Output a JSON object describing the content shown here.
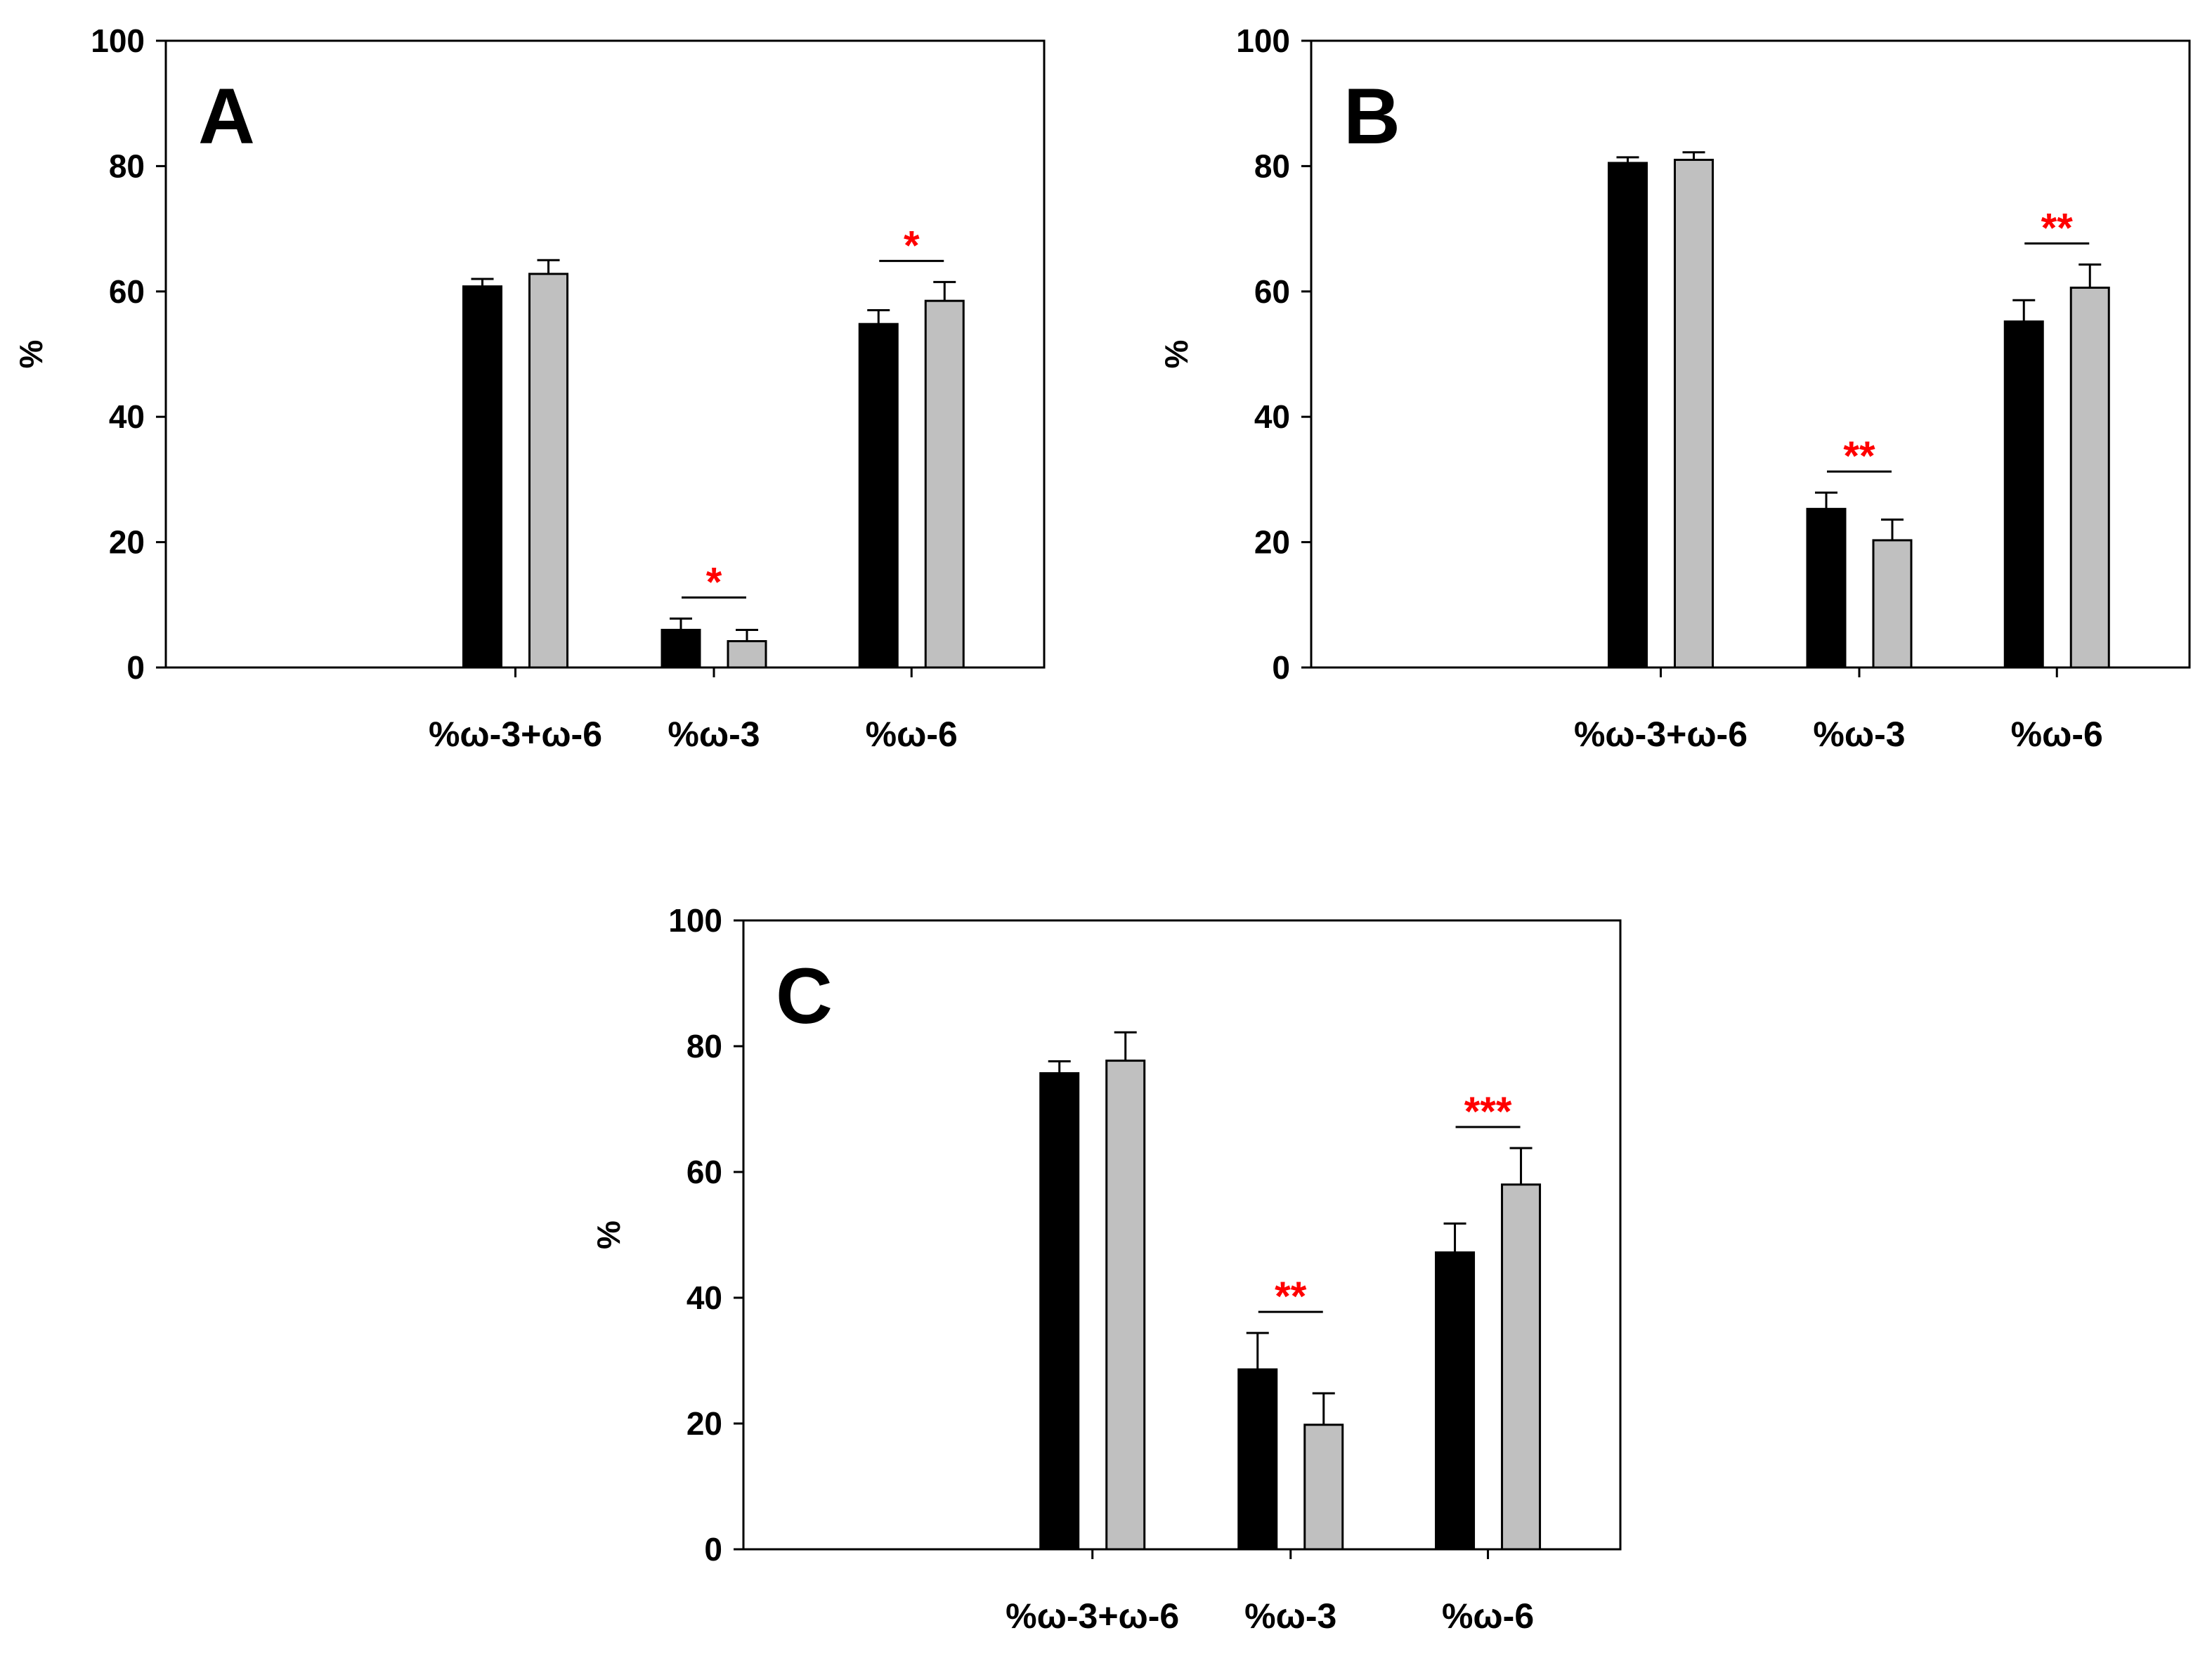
{
  "colors": {
    "series1": "#000000",
    "series2": "#c0c0c0",
    "axis": "#000000",
    "significance": "#ff0000"
  },
  "chart_data": [
    {
      "panel": "A",
      "type": "bar",
      "ylabel": "%",
      "xlabel": "",
      "ylim": [
        0,
        100
      ],
      "yticks": [
        0,
        20,
        40,
        60,
        80,
        100
      ],
      "categories": [
        "%ω-3+ω-6",
        "%ω-3",
        "%ω-6"
      ],
      "series": [
        {
          "name": "series 1 (black)",
          "values": [
            60.8,
            6.0,
            54.8
          ],
          "errors": [
            1.2,
            1.8,
            2.2
          ]
        },
        {
          "name": "series 2 (gray)",
          "values": [
            62.8,
            4.2,
            58.5
          ],
          "errors": [
            2.2,
            1.8,
            3.0
          ]
        }
      ],
      "significance": [
        {
          "category_index": 1,
          "label": "*"
        },
        {
          "category_index": 2,
          "label": "*"
        }
      ]
    },
    {
      "panel": "B",
      "type": "bar",
      "ylabel": "%",
      "xlabel": "",
      "ylim": [
        0,
        100
      ],
      "yticks": [
        0,
        20,
        40,
        60,
        80,
        100
      ],
      "categories": [
        "%ω-3+ω-6",
        "%ω-3",
        "%ω-6"
      ],
      "series": [
        {
          "name": "series 1 (black)",
          "values": [
            80.5,
            25.3,
            55.2
          ],
          "errors": [
            0.9,
            2.6,
            3.4
          ]
        },
        {
          "name": "series 2 (gray)",
          "values": [
            81.0,
            20.3,
            60.6
          ],
          "errors": [
            1.2,
            3.3,
            3.7
          ]
        }
      ],
      "significance": [
        {
          "category_index": 1,
          "label": "**"
        },
        {
          "category_index": 2,
          "label": "**"
        }
      ]
    },
    {
      "panel": "C",
      "type": "bar",
      "ylabel": "%",
      "xlabel": "",
      "ylim": [
        0,
        100
      ],
      "yticks": [
        0,
        20,
        40,
        60,
        80,
        100
      ],
      "categories": [
        "%ω-3+ω-6",
        "%ω-3",
        "%ω-6"
      ],
      "series": [
        {
          "name": "series 1 (black)",
          "values": [
            75.7,
            28.6,
            47.2
          ],
          "errors": [
            1.9,
            5.8,
            4.6
          ]
        },
        {
          "name": "series 2 (gray)",
          "values": [
            77.7,
            19.8,
            58.0
          ],
          "errors": [
            4.5,
            5.0,
            5.8
          ]
        }
      ],
      "significance": [
        {
          "category_index": 1,
          "label": "**"
        },
        {
          "category_index": 2,
          "label": "***"
        }
      ]
    }
  ]
}
